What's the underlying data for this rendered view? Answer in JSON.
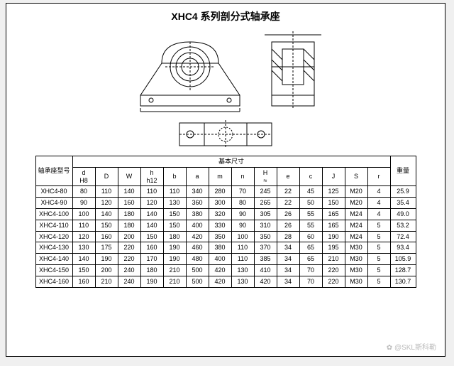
{
  "title": "XHC4  系列剖分式轴承座",
  "table": {
    "group_header": "基本尺寸",
    "col_model": "轴承座型号",
    "col_weight": "重量",
    "columns": [
      "d\nH8",
      "D",
      "W",
      "h\nh12",
      "b",
      "a",
      "m",
      "n",
      "H\n≈",
      "e",
      "c",
      "J",
      "S",
      "r"
    ],
    "rows": [
      {
        "model": "XHC4-80",
        "v": [
          "80",
          "110",
          "140",
          "110",
          "110",
          "340",
          "280",
          "70",
          "245",
          "22",
          "45",
          "125",
          "M20",
          "4"
        ],
        "w": "25.9"
      },
      {
        "model": "XHC4-90",
        "v": [
          "90",
          "120",
          "160",
          "120",
          "130",
          "360",
          "300",
          "80",
          "265",
          "22",
          "50",
          "150",
          "M20",
          "4"
        ],
        "w": "35.4"
      },
      {
        "model": "XHC4-100",
        "v": [
          "100",
          "140",
          "180",
          "140",
          "150",
          "380",
          "320",
          "90",
          "305",
          "26",
          "55",
          "165",
          "M24",
          "4"
        ],
        "w": "49.0"
      },
      {
        "model": "XHC4-110",
        "v": [
          "110",
          "150",
          "180",
          "140",
          "150",
          "400",
          "330",
          "90",
          "310",
          "26",
          "55",
          "165",
          "M24",
          "5"
        ],
        "w": "53.2"
      },
      {
        "model": "XHC4-120",
        "v": [
          "120",
          "160",
          "200",
          "150",
          "180",
          "420",
          "350",
          "100",
          "350",
          "28",
          "60",
          "190",
          "M24",
          "5"
        ],
        "w": "72.4"
      },
      {
        "model": "XHC4-130",
        "v": [
          "130",
          "175",
          "220",
          "160",
          "190",
          "460",
          "380",
          "110",
          "370",
          "34",
          "65",
          "195",
          "M30",
          "5"
        ],
        "w": "93.4"
      },
      {
        "model": "XHC4-140",
        "v": [
          "140",
          "190",
          "220",
          "170",
          "190",
          "480",
          "400",
          "110",
          "385",
          "34",
          "65",
          "210",
          "M30",
          "5"
        ],
        "w": "105.9"
      },
      {
        "model": "XHC4-150",
        "v": [
          "150",
          "200",
          "240",
          "180",
          "210",
          "500",
          "420",
          "130",
          "410",
          "34",
          "70",
          "220",
          "M30",
          "5"
        ],
        "w": "128.7"
      },
      {
        "model": "XHC4-160",
        "v": [
          "160",
          "210",
          "240",
          "190",
          "210",
          "500",
          "420",
          "130",
          "420",
          "34",
          "70",
          "220",
          "M30",
          "5"
        ],
        "w": "130.7"
      }
    ]
  },
  "watermark": "✿ @SKL斯科勒"
}
